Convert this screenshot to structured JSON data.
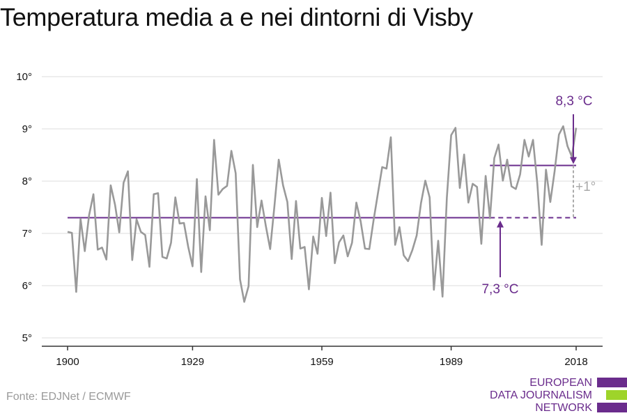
{
  "title": "Temperatura media a e nei dintorni di Visby",
  "source": "Fonte: EDJNet / ECMWF",
  "logo": {
    "lines": [
      "EUROPEAN",
      "DATA JOURNALISM",
      "NETWORK"
    ],
    "colors": [
      "#6a2c8c",
      "#9ed42a",
      "#6a2c8c"
    ]
  },
  "chart_data": {
    "type": "line",
    "x_ticks": [
      1900,
      1929,
      1959,
      1989,
      2018
    ],
    "y_ticks": [
      5,
      6,
      7,
      8,
      9,
      10
    ],
    "y_tick_labels": [
      "5°",
      "6°",
      "7°",
      "8°",
      "9°",
      "10°"
    ],
    "xlim": [
      1900,
      2018
    ],
    "ylim": [
      5,
      10
    ],
    "grid": true,
    "series": [
      {
        "color": "#999999",
        "x": [
          1900,
          1901,
          1902,
          1903,
          1904,
          1905,
          1906,
          1907,
          1908,
          1909,
          1910,
          1911,
          1912,
          1913,
          1914,
          1915,
          1916,
          1917,
          1918,
          1919,
          1920,
          1921,
          1922,
          1923,
          1924,
          1925,
          1926,
          1927,
          1928,
          1929,
          1930,
          1931,
          1932,
          1933,
          1934,
          1935,
          1936,
          1937,
          1938,
          1939,
          1940,
          1941,
          1942,
          1943,
          1944,
          1945,
          1946,
          1947,
          1948,
          1949,
          1950,
          1951,
          1952,
          1953,
          1954,
          1955,
          1956,
          1957,
          1958,
          1959,
          1960,
          1961,
          1962,
          1963,
          1964,
          1965,
          1966,
          1967,
          1968,
          1969,
          1970,
          1971,
          1972,
          1973,
          1974,
          1975,
          1976,
          1977,
          1978,
          1979,
          1980,
          1981,
          1982,
          1983,
          1984,
          1985,
          1986,
          1987,
          1988,
          1989,
          1990,
          1991,
          1992,
          1993,
          1994,
          1995,
          1996,
          1997,
          1998,
          1999,
          2000,
          2001,
          2002,
          2003,
          2004,
          2005,
          2006,
          2007,
          2008,
          2009,
          2010,
          2011,
          2012,
          2013,
          2014,
          2015,
          2016,
          2017,
          2018
        ],
        "values": [
          7.03,
          7.01,
          5.88,
          7.28,
          6.66,
          7.35,
          7.75,
          6.69,
          6.73,
          6.5,
          7.92,
          7.55,
          7.02,
          7.97,
          8.19,
          6.49,
          7.27,
          7.03,
          6.97,
          6.36,
          7.75,
          7.77,
          6.55,
          6.52,
          6.82,
          7.69,
          7.19,
          7.2,
          6.74,
          6.37,
          8.04,
          6.26,
          7.71,
          7.06,
          8.79,
          7.74,
          7.85,
          7.91,
          8.58,
          8.15,
          6.12,
          5.69,
          5.99,
          8.31,
          7.12,
          7.63,
          7.14,
          6.7,
          7.52,
          8.41,
          7.92,
          7.6,
          6.51,
          7.62,
          6.71,
          6.74,
          5.93,
          6.94,
          6.61,
          7.68,
          6.95,
          7.78,
          6.43,
          6.83,
          6.96,
          6.56,
          6.82,
          7.59,
          7.23,
          6.71,
          6.7,
          7.25,
          7.76,
          8.27,
          8.24,
          8.84,
          6.78,
          7.12,
          6.58,
          6.47,
          6.68,
          6.96,
          7.58,
          8.01,
          7.69,
          5.92,
          6.86,
          5.79,
          7.68,
          8.88,
          9.02,
          7.87,
          8.51,
          7.59,
          7.95,
          7.89,
          6.8,
          8.1,
          7.29,
          8.44,
          8.7,
          8.01,
          8.41,
          7.9,
          7.85,
          8.13,
          8.79,
          8.47,
          8.79,
          7.95,
          6.78,
          8.22,
          7.6,
          8.19,
          8.89,
          9.05,
          8.67,
          8.47,
          9.02
        ]
      }
    ],
    "baseline": {
      "value": 7.3,
      "x_start": 1900,
      "x_solid_end": 1998,
      "x_end": 2018,
      "color": "#6a2c8c"
    },
    "recent": {
      "value": 8.3,
      "x_start": 1998,
      "x_end": 2018,
      "color": "#6a2c8c"
    },
    "annotations": [
      {
        "text": "8,3 °C",
        "color": "#6a2c8c"
      },
      {
        "text": "7,3 °C",
        "color": "#6a2c8c"
      },
      {
        "text": "+1°",
        "color": "#aaaaaa"
      }
    ]
  }
}
